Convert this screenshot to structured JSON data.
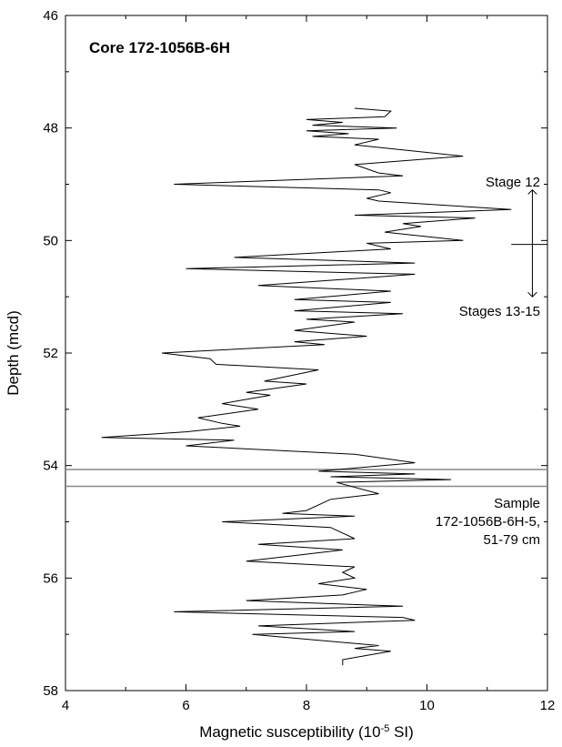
{
  "chart_data": {
    "type": "line",
    "title": "Core 172-1056B-6H",
    "xlabel": "Magnetic susceptibility (10",
    "xlabel_exp": "-5",
    "xlabel_unit": " SI)",
    "ylabel": "Depth (mcd)",
    "xlim": [
      4,
      12
    ],
    "ylim": [
      58,
      46
    ],
    "xticks": [
      4,
      6,
      8,
      10,
      12
    ],
    "yticks": [
      46,
      48,
      50,
      52,
      54,
      56,
      58
    ],
    "grid": false,
    "series": [
      {
        "points": [
          [
            8.8,
            47.65
          ],
          [
            9.4,
            47.7
          ],
          [
            9.3,
            47.8
          ],
          [
            8.0,
            47.85
          ],
          [
            8.6,
            47.9
          ],
          [
            8.1,
            47.95
          ],
          [
            9.5,
            48.0
          ],
          [
            8.0,
            48.05
          ],
          [
            8.7,
            48.1
          ],
          [
            8.1,
            48.15
          ],
          [
            9.2,
            48.2
          ],
          [
            8.8,
            48.3
          ],
          [
            10.6,
            48.5
          ],
          [
            8.8,
            48.65
          ],
          [
            9.2,
            48.8
          ],
          [
            9.6,
            48.85
          ],
          [
            5.8,
            49.0
          ],
          [
            9.2,
            49.1
          ],
          [
            9.4,
            49.15
          ],
          [
            9.0,
            49.25
          ],
          [
            9.2,
            49.3
          ],
          [
            11.4,
            49.45
          ],
          [
            8.8,
            49.55
          ],
          [
            10.8,
            49.6
          ],
          [
            9.6,
            49.7
          ],
          [
            9.9,
            49.75
          ],
          [
            9.3,
            49.85
          ],
          [
            10.6,
            50.0
          ],
          [
            9.0,
            50.05
          ],
          [
            9.4,
            50.15
          ],
          [
            6.8,
            50.3
          ],
          [
            9.8,
            50.4
          ],
          [
            6.0,
            50.5
          ],
          [
            9.8,
            50.6
          ],
          [
            7.2,
            50.8
          ],
          [
            9.4,
            50.9
          ],
          [
            7.8,
            51.05
          ],
          [
            9.4,
            51.1
          ],
          [
            7.8,
            51.25
          ],
          [
            9.6,
            51.3
          ],
          [
            8.0,
            51.4
          ],
          [
            8.8,
            51.45
          ],
          [
            7.8,
            51.6
          ],
          [
            9.0,
            51.7
          ],
          [
            7.8,
            51.8
          ],
          [
            8.3,
            51.85
          ],
          [
            5.6,
            52.0
          ],
          [
            6.4,
            52.1
          ],
          [
            6.5,
            52.2
          ],
          [
            8.2,
            52.3
          ],
          [
            7.3,
            52.5
          ],
          [
            8.0,
            52.55
          ],
          [
            7.0,
            52.7
          ],
          [
            7.4,
            52.75
          ],
          [
            6.6,
            52.9
          ],
          [
            7.2,
            53.0
          ],
          [
            6.2,
            53.15
          ],
          [
            6.6,
            53.25
          ],
          [
            6.9,
            53.3
          ],
          [
            6.0,
            53.4
          ],
          [
            4.6,
            53.5
          ],
          [
            6.8,
            53.55
          ],
          [
            6.0,
            53.65
          ],
          [
            8.8,
            53.8
          ],
          [
            9.8,
            53.95
          ],
          [
            8.2,
            54.1
          ],
          [
            9.8,
            54.15
          ],
          [
            8.4,
            54.2
          ],
          [
            10.4,
            54.25
          ],
          [
            8.5,
            54.3
          ],
          [
            9.2,
            54.5
          ],
          [
            8.4,
            54.6
          ],
          [
            8.0,
            54.8
          ],
          [
            7.6,
            54.85
          ],
          [
            8.8,
            54.9
          ],
          [
            6.6,
            55.0
          ],
          [
            8.4,
            55.1
          ],
          [
            8.8,
            55.3
          ],
          [
            7.2,
            55.4
          ],
          [
            8.6,
            55.5
          ],
          [
            7.8,
            55.6
          ],
          [
            7.0,
            55.7
          ],
          [
            8.8,
            55.8
          ],
          [
            8.6,
            55.9
          ],
          [
            8.8,
            56.0
          ],
          [
            8.2,
            56.1
          ],
          [
            9.0,
            56.2
          ],
          [
            8.6,
            56.3
          ],
          [
            7.0,
            56.4
          ],
          [
            9.6,
            56.5
          ],
          [
            5.8,
            56.6
          ],
          [
            9.6,
            56.7
          ],
          [
            9.8,
            56.75
          ],
          [
            7.2,
            56.85
          ],
          [
            8.8,
            56.95
          ],
          [
            7.1,
            57.0
          ],
          [
            9.2,
            57.2
          ],
          [
            8.8,
            57.25
          ],
          [
            9.4,
            57.3
          ],
          [
            8.6,
            57.45
          ],
          [
            8.6,
            57.55
          ]
        ]
      }
    ],
    "hlines": [
      54.07,
      54.37
    ],
    "annotations": {
      "stage12": "Stage 12",
      "stage1315": "Stages 13-15",
      "sample_l1": "Sample",
      "sample_l2": "172-1056B-6H-5,",
      "sample_l3": "51-79 cm"
    },
    "boundary_depth": 50.07,
    "arrow_range": [
      49.1,
      51.0
    ],
    "boundary_x": [
      11.4,
      12.0
    ],
    "arrow_x": 11.75
  }
}
